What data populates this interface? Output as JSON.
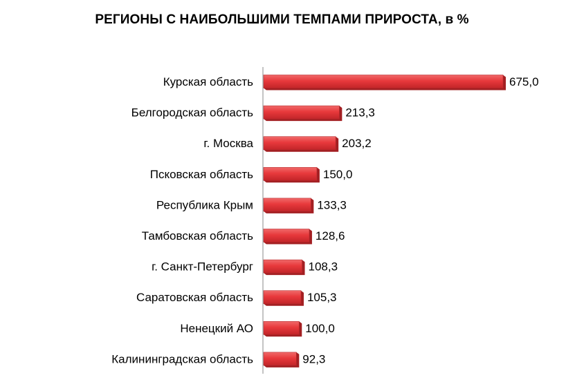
{
  "chart_data": {
    "type": "bar",
    "orientation": "horizontal",
    "title": "РЕГИОНЫ С НАИБОЛЬШИМИ ТЕМПАМИ ПРИРОСТА, в %",
    "categories": [
      "Курская область",
      "Белгородская область",
      "г. Москва",
      "Псковская область",
      "Республика Крым",
      "Тамбовская область",
      "г. Санкт-Петербург",
      "Саратовская область",
      "Ненецкий АО",
      "Калининградская область"
    ],
    "values": [
      675.0,
      213.3,
      203.2,
      150.0,
      133.3,
      128.6,
      108.3,
      105.3,
      100.0,
      92.3
    ],
    "value_labels": [
      "675,0",
      "213,3",
      "203,2",
      "150,0",
      "133,3",
      "128,6",
      "108,3",
      "105,3",
      "100,0",
      "92,3"
    ],
    "xlim": [
      0,
      675
    ],
    "grid": false,
    "legend": "none",
    "bar_color": "#e8393c",
    "bar_shade_color": "#a31f22"
  }
}
